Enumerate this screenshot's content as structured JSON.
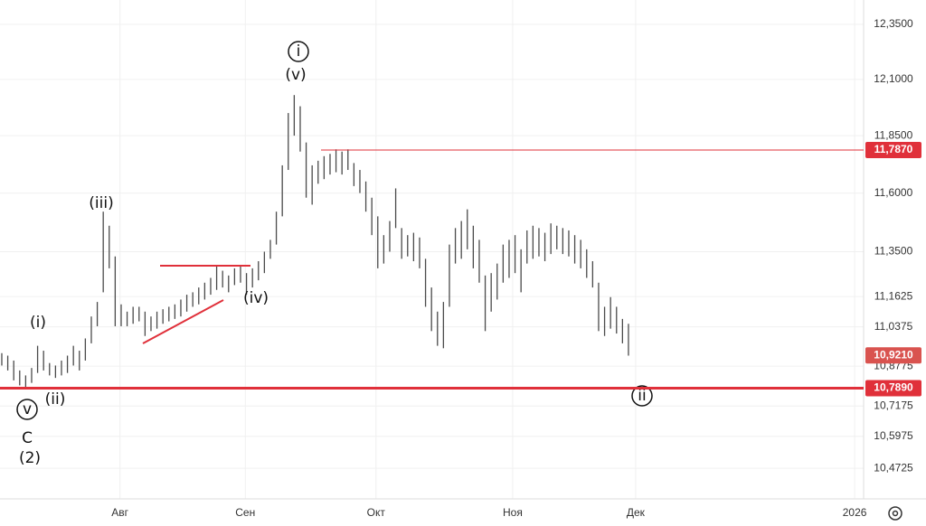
{
  "chart_data": {
    "type": "range_bars",
    "high": [
      10.93,
      10.92,
      10.9,
      10.86,
      10.84,
      10.87,
      10.96,
      10.94,
      10.89,
      10.88,
      10.9,
      10.92,
      10.96,
      10.94,
      10.99,
      11.08,
      11.14,
      11.52,
      11.46,
      11.33,
      11.13,
      11.1,
      11.12,
      11.12,
      11.1,
      11.08,
      11.1,
      11.11,
      11.12,
      11.13,
      11.15,
      11.17,
      11.18,
      11.2,
      11.22,
      11.24,
      11.29,
      11.27,
      11.25,
      11.28,
      11.29,
      11.26,
      11.28,
      11.31,
      11.35,
      11.4,
      11.52,
      11.72,
      11.95,
      12.03,
      11.98,
      11.82,
      11.72,
      11.74,
      11.76,
      11.77,
      11.79,
      11.78,
      11.79,
      11.73,
      11.7,
      11.65,
      11.58,
      11.5,
      11.42,
      11.48,
      11.62,
      11.45,
      11.42,
      11.43,
      11.41,
      11.32,
      11.2,
      11.1,
      11.14,
      11.38,
      11.45,
      11.48,
      11.53,
      11.46,
      11.4,
      11.25,
      11.26,
      11.3,
      11.38,
      11.4,
      11.42,
      11.36,
      11.44,
      11.46,
      11.45,
      11.43,
      11.47,
      11.46,
      11.45,
      11.44,
      11.42,
      11.4,
      11.36,
      11.31,
      11.22,
      11.12,
      11.16,
      11.12,
      11.07,
      11.05
    ],
    "low": [
      10.88,
      10.86,
      10.82,
      10.8,
      10.79,
      10.81,
      10.85,
      10.86,
      10.84,
      10.83,
      10.84,
      10.85,
      10.88,
      10.86,
      10.9,
      10.97,
      11.04,
      11.18,
      11.28,
      11.04,
      11.04,
      11.04,
      11.05,
      11.06,
      11.0,
      11.02,
      11.03,
      11.05,
      11.06,
      11.07,
      11.08,
      11.1,
      11.12,
      11.13,
      11.15,
      11.17,
      11.19,
      11.2,
      11.18,
      11.21,
      11.22,
      11.17,
      11.2,
      11.23,
      11.26,
      11.32,
      11.38,
      11.5,
      11.7,
      11.85,
      11.78,
      11.58,
      11.55,
      11.64,
      11.66,
      11.68,
      11.69,
      11.68,
      11.7,
      11.63,
      11.6,
      11.52,
      11.42,
      11.28,
      11.3,
      11.35,
      11.45,
      11.32,
      11.33,
      11.31,
      11.28,
      11.12,
      11.02,
      10.96,
      10.95,
      11.12,
      11.3,
      11.32,
      11.36,
      11.28,
      11.22,
      11.02,
      11.1,
      11.15,
      11.22,
      11.24,
      11.26,
      11.18,
      11.3,
      11.32,
      11.33,
      11.31,
      11.34,
      11.36,
      11.34,
      11.33,
      11.3,
      11.28,
      11.24,
      11.2,
      11.02,
      11.0,
      11.03,
      11.01,
      10.97,
      10.92
    ],
    "color": "#4a4a4a",
    "log_scale": true,
    "grid": true,
    "xlim": [
      -0.3,
      144.4
    ],
    "xticks": [
      {
        "value": 19.8,
        "label": "Авг"
      },
      {
        "value": 40.8,
        "label": "Сен"
      },
      {
        "value": 62.7,
        "label": "Окт"
      },
      {
        "value": 85.6,
        "label": "Ноя"
      },
      {
        "value": 106.2,
        "label": "Дек"
      },
      {
        "value": 142.9,
        "label": "2026"
      }
    ],
    "ylim": [
      10.354,
      12.4625
    ],
    "yticks": [
      {
        "value": 12.35,
        "label": "12,3500"
      },
      {
        "value": 12.1,
        "label": "12,1000"
      },
      {
        "value": 11.85,
        "label": "11,8500"
      },
      {
        "value": 11.6,
        "label": "11,6000"
      },
      {
        "value": 11.35,
        "label": "11,3500"
      },
      {
        "value": 11.1625,
        "label": "11,1625"
      },
      {
        "value": 11.0375,
        "label": "11,0375"
      },
      {
        "value": 10.8775,
        "label": "10,8775"
      },
      {
        "value": 10.7175,
        "label": "10,7175"
      },
      {
        "value": 10.5975,
        "label": "10,5975"
      },
      {
        "value": 10.4725,
        "label": "10,4725"
      }
    ],
    "price_lines": [
      {
        "value": 11.787,
        "label": "11,7870",
        "color": "#e0303a"
      },
      {
        "value": 10.921,
        "label": "10,9210",
        "color": "#d9534f"
      },
      {
        "value": 10.789,
        "label": "10,7890",
        "color": "#e0303a"
      }
    ],
    "annotations": [
      "i",
      "(v)",
      "(iii)",
      "(i)",
      "(ii)",
      "v",
      "C",
      "(2)",
      "(iv)",
      "ii"
    ]
  }
}
